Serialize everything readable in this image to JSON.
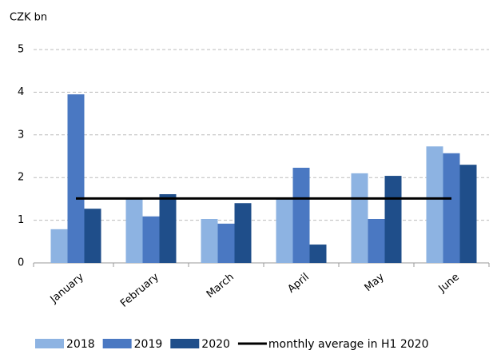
{
  "chart_data": {
    "type": "bar",
    "y_label": "CZK bn",
    "categories": [
      "January",
      "February",
      "March",
      "April",
      "May",
      "June"
    ],
    "series": [
      {
        "name": "2018",
        "color": "#8db3e2",
        "values": [
          0.79,
          1.5,
          1.03,
          1.5,
          2.1,
          2.73
        ]
      },
      {
        "name": "2019",
        "color": "#4a78c2",
        "values": [
          3.95,
          1.09,
          0.92,
          2.23,
          1.03,
          2.57
        ]
      },
      {
        "name": "2020",
        "color": "#1f4e8a",
        "values": [
          1.27,
          1.61,
          1.4,
          0.43,
          2.04,
          2.3
        ]
      },
      {
        "name": "monthly average in H1 2020",
        "type": "line",
        "color": "#000000",
        "values": [
          1.51,
          1.51,
          1.51,
          1.51,
          1.51,
          1.51
        ]
      }
    ],
    "ylim": [
      0,
      5
    ],
    "yticks": [
      0,
      1,
      2,
      3,
      4,
      5
    ],
    "grid": true,
    "legend": "bottom"
  }
}
